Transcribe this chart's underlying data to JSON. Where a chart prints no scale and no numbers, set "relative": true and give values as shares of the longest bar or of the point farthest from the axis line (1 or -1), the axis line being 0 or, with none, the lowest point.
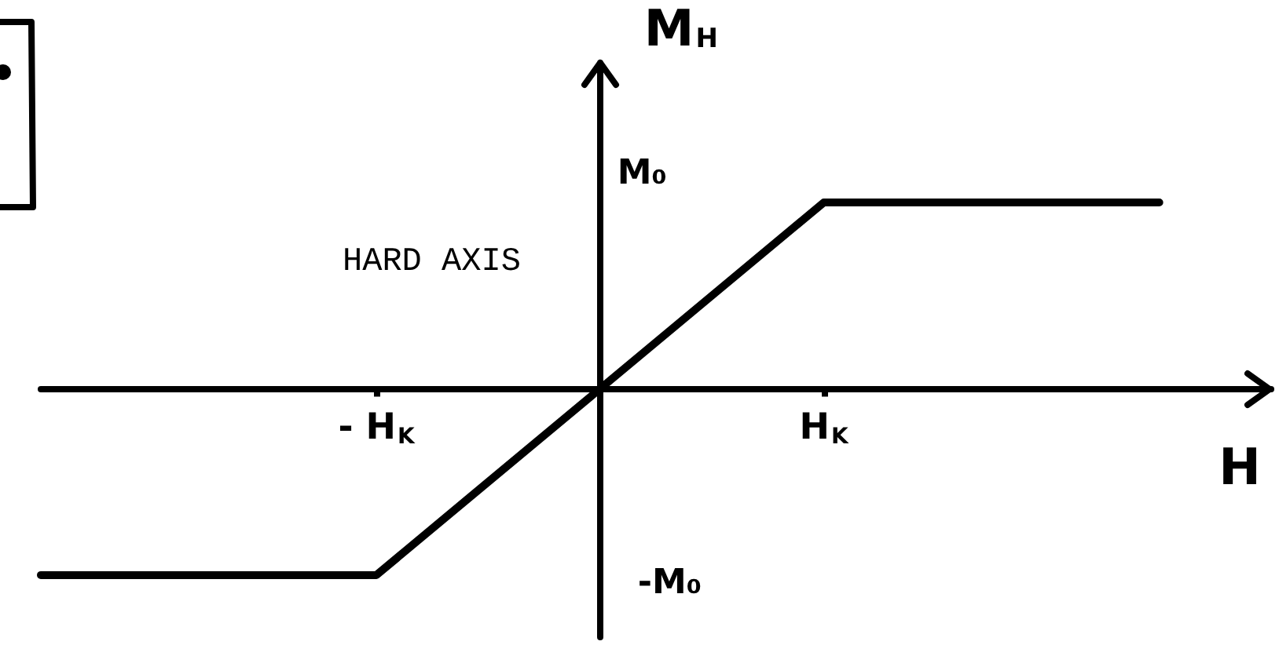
{
  "chart_data": {
    "type": "line",
    "title": "HARD AXIS",
    "xlabel": "H",
    "ylabel": "M$_{H}$",
    "relative": true,
    "categories": [
      null,
      null,
      null,
      "- H$_{K}$",
      null,
      null,
      null,
      "H$_{K}$",
      null,
      null,
      null,
      null
    ],
    "values": [
      -1,
      -1,
      -1,
      -1,
      -0.5,
      0,
      0.5,
      1,
      1,
      1,
      1,
      null
    ],
    "color": "#000000",
    "annotations": [
      "M₀",
      "-M₀"
    ],
    "marker": "none",
    "line_style": "solid"
  }
}
